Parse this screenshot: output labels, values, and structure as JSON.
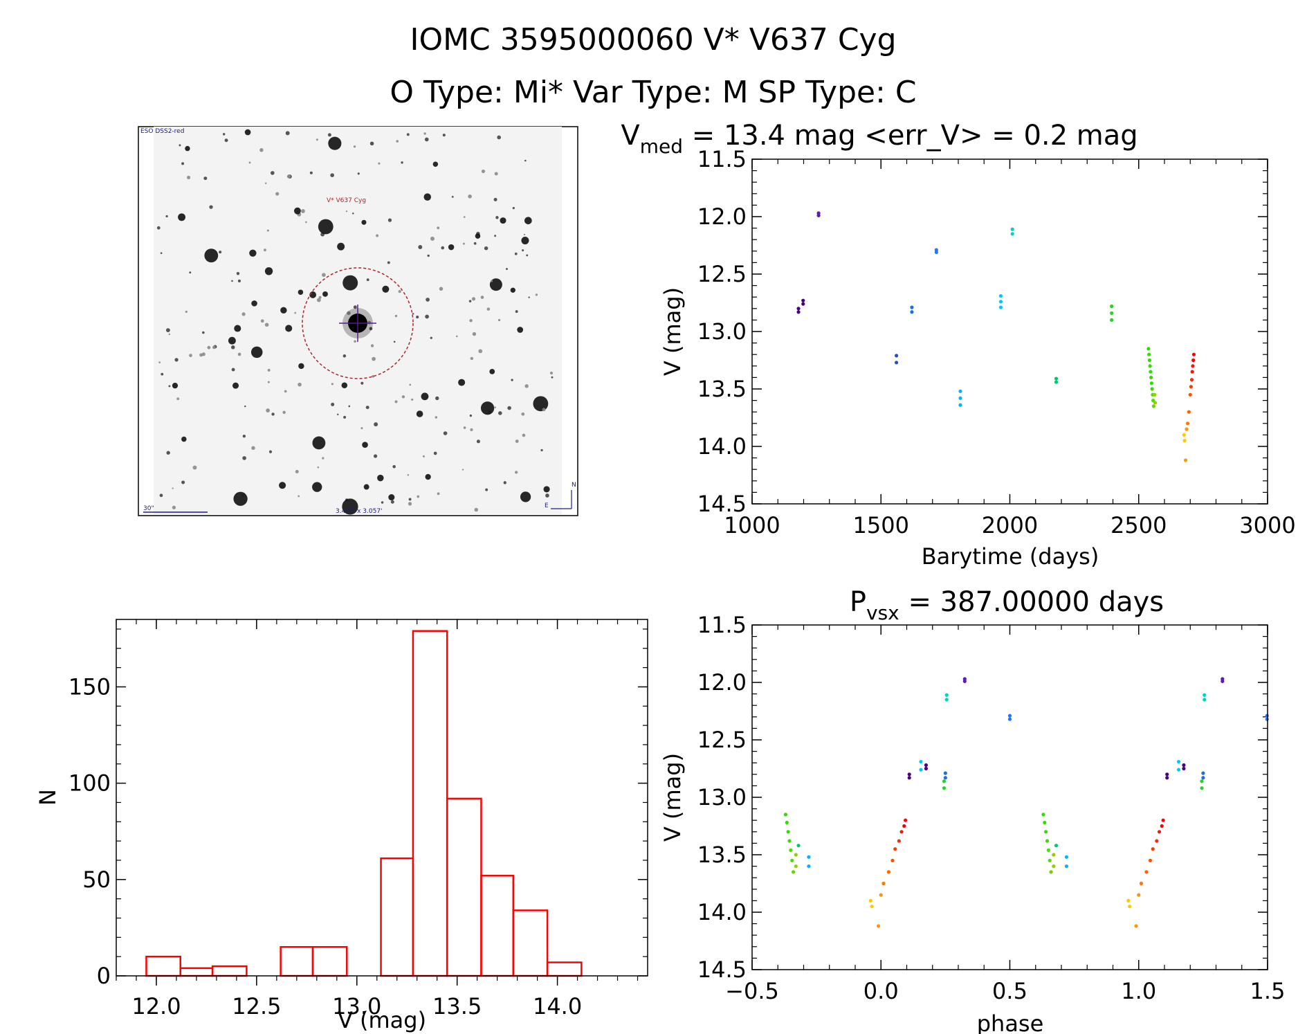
{
  "header": {
    "line1": "IOMC 3595000060    V* V637 Cyg",
    "line2": "O Type: Mi*  Var Type: M   SP Type: C"
  },
  "finder": {
    "survey_label": "ESO DSS2-red",
    "target_label": "V* V637 Cyg",
    "scale_label": "30\"",
    "fov_label": "3.447' x 3.057'",
    "north_label": "N",
    "east_label": "E",
    "colors": {
      "circle": "#b22222",
      "labels": "#1a1a8c",
      "target_label": "#b22222"
    }
  },
  "chart_data": [
    {
      "id": "lightcurve",
      "type": "scatter",
      "title_parts": [
        "V",
        "med",
        " = 13.4 mag <err_V> = 0.2 mag"
      ],
      "xlabel": "Barytime (days)",
      "ylabel": "V (mag)",
      "xlim": [
        1000,
        3000
      ],
      "ylim": [
        11.5,
        14.5
      ],
      "y_inverted": true,
      "xticks": [
        "1000",
        "1500",
        "2000",
        "2500",
        "3000"
      ],
      "yticks": [
        "11.5",
        "12.0",
        "12.5",
        "13.0",
        "13.5",
        "14.0",
        "14.5"
      ],
      "points": [
        {
          "x": 1180,
          "y": 12.8,
          "color": "#4b0082"
        },
        {
          "x": 1180,
          "y": 12.83,
          "color": "#4b0082"
        },
        {
          "x": 1198,
          "y": 12.73,
          "color": "#4b0082"
        },
        {
          "x": 1198,
          "y": 12.76,
          "color": "#4b0082"
        },
        {
          "x": 1258,
          "y": 11.97,
          "color": "#5a1ab8"
        },
        {
          "x": 1258,
          "y": 11.99,
          "color": "#5a1ab8"
        },
        {
          "x": 1560,
          "y": 13.21,
          "color": "#1e50c8"
        },
        {
          "x": 1560,
          "y": 13.27,
          "color": "#1e50c8"
        },
        {
          "x": 1620,
          "y": 12.79,
          "color": "#1e6ee0"
        },
        {
          "x": 1620,
          "y": 12.83,
          "color": "#1e6ee0"
        },
        {
          "x": 1715,
          "y": 12.29,
          "color": "#1e78ff"
        },
        {
          "x": 1715,
          "y": 12.31,
          "color": "#1e78ff"
        },
        {
          "x": 1808,
          "y": 13.52,
          "color": "#00b4ff"
        },
        {
          "x": 1808,
          "y": 13.58,
          "color": "#00b4ff"
        },
        {
          "x": 1808,
          "y": 13.64,
          "color": "#00b4ff"
        },
        {
          "x": 1965,
          "y": 12.69,
          "color": "#00c8ff"
        },
        {
          "x": 1965,
          "y": 12.74,
          "color": "#00c8ff"
        },
        {
          "x": 1965,
          "y": 12.79,
          "color": "#00c8ff"
        },
        {
          "x": 2010,
          "y": 12.11,
          "color": "#00d2c8"
        },
        {
          "x": 2010,
          "y": 12.15,
          "color": "#00d2c8"
        },
        {
          "x": 2180,
          "y": 13.41,
          "color": "#00c864"
        },
        {
          "x": 2180,
          "y": 13.44,
          "color": "#00c864"
        },
        {
          "x": 2395,
          "y": 12.78,
          "color": "#28d228"
        },
        {
          "x": 2395,
          "y": 12.84,
          "color": "#28d228"
        },
        {
          "x": 2395,
          "y": 12.9,
          "color": "#28d228"
        },
        {
          "x": 2538,
          "y": 13.15,
          "color": "#32dc00"
        },
        {
          "x": 2540,
          "y": 13.2,
          "color": "#32dc00"
        },
        {
          "x": 2542,
          "y": 13.25,
          "color": "#32dc00"
        },
        {
          "x": 2544,
          "y": 13.3,
          "color": "#32dc00"
        },
        {
          "x": 2546,
          "y": 13.35,
          "color": "#32dc00"
        },
        {
          "x": 2548,
          "y": 13.4,
          "color": "#32dc00"
        },
        {
          "x": 2550,
          "y": 13.45,
          "color": "#32dc00"
        },
        {
          "x": 2552,
          "y": 13.5,
          "color": "#32dc00"
        },
        {
          "x": 2554,
          "y": 13.55,
          "color": "#50dc00"
        },
        {
          "x": 2556,
          "y": 13.6,
          "color": "#50dc00"
        },
        {
          "x": 2558,
          "y": 13.65,
          "color": "#6ed200"
        },
        {
          "x": 2562,
          "y": 13.55,
          "color": "#8cd200"
        },
        {
          "x": 2564,
          "y": 13.62,
          "color": "#8cd200"
        },
        {
          "x": 2676,
          "y": 13.9,
          "color": "#ffc800"
        },
        {
          "x": 2678,
          "y": 13.95,
          "color": "#ffc800"
        },
        {
          "x": 2682,
          "y": 14.12,
          "color": "#ff9600"
        },
        {
          "x": 2686,
          "y": 13.85,
          "color": "#ff9600"
        },
        {
          "x": 2690,
          "y": 13.8,
          "color": "#ff7800"
        },
        {
          "x": 2695,
          "y": 13.7,
          "color": "#ff6400"
        },
        {
          "x": 2700,
          "y": 13.55,
          "color": "#ff5000"
        },
        {
          "x": 2703,
          "y": 13.48,
          "color": "#ff3c00"
        },
        {
          "x": 2706,
          "y": 13.42,
          "color": "#ff2800"
        },
        {
          "x": 2708,
          "y": 13.35,
          "color": "#ff1400"
        },
        {
          "x": 2710,
          "y": 13.3,
          "color": "#ff1400"
        },
        {
          "x": 2712,
          "y": 13.25,
          "color": "#ff0000"
        },
        {
          "x": 2714,
          "y": 13.2,
          "color": "#ff0000"
        }
      ]
    },
    {
      "id": "histogram",
      "type": "bar",
      "title": "",
      "xlabel": "V (mag)",
      "ylabel": "N",
      "xlim": [
        11.8,
        14.45
      ],
      "ylim": [
        0,
        185
      ],
      "xticks": [
        "12.0",
        "12.5",
        "13.0",
        "13.5",
        "14.0"
      ],
      "yticks": [
        "0",
        "50",
        "100",
        "150"
      ],
      "bar_color": "#ff0000",
      "bins": [
        {
          "x0": 11.95,
          "x1": 12.12,
          "value": 10
        },
        {
          "x0": 12.12,
          "x1": 12.28,
          "value": 4
        },
        {
          "x0": 12.28,
          "x1": 12.45,
          "value": 5
        },
        {
          "x0": 12.45,
          "x1": 12.62,
          "value": 0
        },
        {
          "x0": 12.62,
          "x1": 12.78,
          "value": 15
        },
        {
          "x0": 12.78,
          "x1": 12.95,
          "value": 15
        },
        {
          "x0": 12.95,
          "x1": 13.12,
          "value": 0
        },
        {
          "x0": 13.12,
          "x1": 13.28,
          "value": 61
        },
        {
          "x0": 13.28,
          "x1": 13.45,
          "value": 179
        },
        {
          "x0": 13.45,
          "x1": 13.62,
          "value": 92
        },
        {
          "x0": 13.62,
          "x1": 13.78,
          "value": 52
        },
        {
          "x0": 13.78,
          "x1": 13.95,
          "value": 34
        },
        {
          "x0": 13.95,
          "x1": 14.12,
          "value": 7
        }
      ]
    },
    {
      "id": "phased",
      "type": "scatter",
      "title_parts": [
        "P",
        "vsx",
        " = 387.00000 days"
      ],
      "xlabel": "phase",
      "ylabel": "V (mag)",
      "xlim": [
        -0.5,
        1.5
      ],
      "ylim": [
        11.5,
        14.5
      ],
      "y_inverted": true,
      "xticks": [
        "−0.5",
        "0.0",
        "0.5",
        "1.0",
        "1.5"
      ],
      "yticks": [
        "11.5",
        "12.0",
        "12.5",
        "13.0",
        "13.5",
        "14.0",
        "14.5"
      ],
      "points": [
        {
          "x": -0.37,
          "y": 13.15,
          "color": "#32dc00"
        },
        {
          "x": -0.365,
          "y": 13.22,
          "color": "#32dc00"
        },
        {
          "x": -0.36,
          "y": 13.3,
          "color": "#32dc00"
        },
        {
          "x": -0.355,
          "y": 13.38,
          "color": "#32dc00"
        },
        {
          "x": -0.35,
          "y": 13.46,
          "color": "#50dc00"
        },
        {
          "x": -0.345,
          "y": 13.55,
          "color": "#50dc00"
        },
        {
          "x": -0.34,
          "y": 13.65,
          "color": "#6ed200"
        },
        {
          "x": -0.33,
          "y": 13.5,
          "color": "#8cd200"
        },
        {
          "x": -0.33,
          "y": 13.6,
          "color": "#8cd200"
        },
        {
          "x": -0.32,
          "y": 13.42,
          "color": "#00c864"
        },
        {
          "x": -0.28,
          "y": 13.52,
          "color": "#00b4ff"
        },
        {
          "x": -0.28,
          "y": 13.6,
          "color": "#00b4ff"
        },
        {
          "x": -0.04,
          "y": 13.9,
          "color": "#ffc800"
        },
        {
          "x": -0.035,
          "y": 13.95,
          "color": "#ffc800"
        },
        {
          "x": -0.01,
          "y": 14.12,
          "color": "#ff9600"
        },
        {
          "x": 0.0,
          "y": 13.85,
          "color": "#ff9600"
        },
        {
          "x": 0.01,
          "y": 13.75,
          "color": "#ff7800"
        },
        {
          "x": 0.03,
          "y": 13.65,
          "color": "#ff6400"
        },
        {
          "x": 0.045,
          "y": 13.55,
          "color": "#ff5000"
        },
        {
          "x": 0.055,
          "y": 13.45,
          "color": "#ff3c00"
        },
        {
          "x": 0.07,
          "y": 13.38,
          "color": "#ff2800"
        },
        {
          "x": 0.08,
          "y": 13.3,
          "color": "#ff1400"
        },
        {
          "x": 0.09,
          "y": 13.25,
          "color": "#ff0000"
        },
        {
          "x": 0.095,
          "y": 13.2,
          "color": "#ff0000"
        },
        {
          "x": 0.11,
          "y": 12.8,
          "color": "#4b0082"
        },
        {
          "x": 0.11,
          "y": 12.83,
          "color": "#4b0082"
        },
        {
          "x": 0.155,
          "y": 12.69,
          "color": "#00c8ff"
        },
        {
          "x": 0.155,
          "y": 12.76,
          "color": "#00c8ff"
        },
        {
          "x": 0.175,
          "y": 12.72,
          "color": "#4b0082"
        },
        {
          "x": 0.175,
          "y": 12.75,
          "color": "#4b0082"
        },
        {
          "x": 0.245,
          "y": 12.86,
          "color": "#28d228"
        },
        {
          "x": 0.245,
          "y": 12.92,
          "color": "#28d228"
        },
        {
          "x": 0.25,
          "y": 12.79,
          "color": "#1e6ee0"
        },
        {
          "x": 0.25,
          "y": 12.83,
          "color": "#1e6ee0"
        },
        {
          "x": 0.255,
          "y": 12.11,
          "color": "#00d2c8"
        },
        {
          "x": 0.255,
          "y": 12.15,
          "color": "#00d2c8"
        },
        {
          "x": 0.325,
          "y": 11.97,
          "color": "#5a1ab8"
        },
        {
          "x": 0.325,
          "y": 11.99,
          "color": "#5a1ab8"
        },
        {
          "x": 0.5,
          "y": 12.29,
          "color": "#1e78ff"
        },
        {
          "x": 0.5,
          "y": 12.32,
          "color": "#1e78ff"
        },
        {
          "x": 0.63,
          "y": 13.15,
          "color": "#32dc00"
        },
        {
          "x": 0.635,
          "y": 13.22,
          "color": "#32dc00"
        },
        {
          "x": 0.64,
          "y": 13.3,
          "color": "#32dc00"
        },
        {
          "x": 0.645,
          "y": 13.38,
          "color": "#32dc00"
        },
        {
          "x": 0.65,
          "y": 13.46,
          "color": "#50dc00"
        },
        {
          "x": 0.655,
          "y": 13.55,
          "color": "#50dc00"
        },
        {
          "x": 0.66,
          "y": 13.65,
          "color": "#6ed200"
        },
        {
          "x": 0.67,
          "y": 13.5,
          "color": "#8cd200"
        },
        {
          "x": 0.67,
          "y": 13.6,
          "color": "#8cd200"
        },
        {
          "x": 0.68,
          "y": 13.42,
          "color": "#00c864"
        },
        {
          "x": 0.72,
          "y": 13.52,
          "color": "#00b4ff"
        },
        {
          "x": 0.72,
          "y": 13.6,
          "color": "#00b4ff"
        },
        {
          "x": 0.96,
          "y": 13.9,
          "color": "#ffc800"
        },
        {
          "x": 0.965,
          "y": 13.95,
          "color": "#ffc800"
        },
        {
          "x": 0.99,
          "y": 14.12,
          "color": "#ff9600"
        },
        {
          "x": 1.0,
          "y": 13.85,
          "color": "#ff9600"
        },
        {
          "x": 1.01,
          "y": 13.75,
          "color": "#ff7800"
        },
        {
          "x": 1.03,
          "y": 13.65,
          "color": "#ff6400"
        },
        {
          "x": 1.045,
          "y": 13.55,
          "color": "#ff5000"
        },
        {
          "x": 1.055,
          "y": 13.45,
          "color": "#ff3c00"
        },
        {
          "x": 1.07,
          "y": 13.38,
          "color": "#ff2800"
        },
        {
          "x": 1.08,
          "y": 13.3,
          "color": "#ff1400"
        },
        {
          "x": 1.09,
          "y": 13.25,
          "color": "#ff0000"
        },
        {
          "x": 1.095,
          "y": 13.2,
          "color": "#ff0000"
        },
        {
          "x": 1.11,
          "y": 12.8,
          "color": "#4b0082"
        },
        {
          "x": 1.11,
          "y": 12.83,
          "color": "#4b0082"
        },
        {
          "x": 1.155,
          "y": 12.69,
          "color": "#00c8ff"
        },
        {
          "x": 1.155,
          "y": 12.76,
          "color": "#00c8ff"
        },
        {
          "x": 1.175,
          "y": 12.72,
          "color": "#4b0082"
        },
        {
          "x": 1.175,
          "y": 12.75,
          "color": "#4b0082"
        },
        {
          "x": 1.245,
          "y": 12.86,
          "color": "#28d228"
        },
        {
          "x": 1.245,
          "y": 12.92,
          "color": "#28d228"
        },
        {
          "x": 1.25,
          "y": 12.79,
          "color": "#1e6ee0"
        },
        {
          "x": 1.25,
          "y": 12.83,
          "color": "#1e6ee0"
        },
        {
          "x": 1.255,
          "y": 12.11,
          "color": "#00d2c8"
        },
        {
          "x": 1.255,
          "y": 12.15,
          "color": "#00d2c8"
        },
        {
          "x": 1.325,
          "y": 11.97,
          "color": "#5a1ab8"
        },
        {
          "x": 1.325,
          "y": 11.99,
          "color": "#5a1ab8"
        },
        {
          "x": 1.498,
          "y": 12.29,
          "color": "#1e78ff"
        },
        {
          "x": 1.498,
          "y": 12.32,
          "color": "#1e78ff"
        }
      ]
    }
  ]
}
